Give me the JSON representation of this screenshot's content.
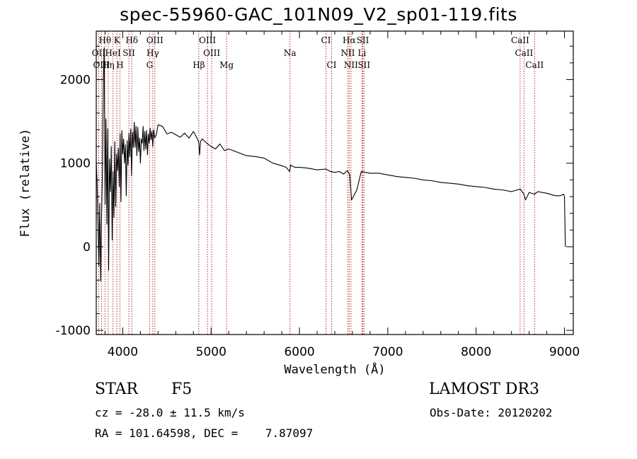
{
  "title": "spec-55960-GAC_101N09_V2_sp01-119.fits",
  "footer": {
    "class_label": "STAR",
    "subclass": "F5",
    "survey": "LAMOST DR3",
    "redshift": "cz = -28.0 ± 11.5 km/s",
    "obs_date": "Obs-Date: 20120202",
    "coords": "RA = 101.64598, DEC =    7.87097"
  },
  "chart_data": {
    "type": "line",
    "title": "spec-55960-GAC_101N09_V2_sp01-119.fits",
    "xlabel": "Wavelength (Å)",
    "ylabel": "Flux (relative)",
    "xlim": [
      3700,
      9100
    ],
    "ylim": [
      -1050,
      2580
    ],
    "xticks": [
      4000,
      5000,
      6000,
      7000,
      8000,
      9000
    ],
    "yticks": [
      -1000,
      0,
      1000,
      2000
    ],
    "grid": false,
    "spectrum": {
      "x": [
        3700,
        3710,
        3720,
        3730,
        3740,
        3750,
        3760,
        3770,
        3780,
        3790,
        3800,
        3810,
        3820,
        3830,
        3840,
        3850,
        3860,
        3870,
        3880,
        3890,
        3900,
        3910,
        3920,
        3930,
        3940,
        3950,
        3960,
        3970,
        3980,
        3990,
        4000,
        4010,
        4020,
        4030,
        4040,
        4050,
        4060,
        4070,
        4080,
        4090,
        4100,
        4110,
        4120,
        4130,
        4140,
        4150,
        4160,
        4170,
        4180,
        4190,
        4200,
        4210,
        4220,
        4230,
        4240,
        4250,
        4260,
        4270,
        4280,
        4290,
        4300,
        4310,
        4320,
        4330,
        4340,
        4350,
        4360,
        4380,
        4400,
        4450,
        4500,
        4550,
        4600,
        4650,
        4700,
        4750,
        4800,
        4850,
        4860,
        4870,
        4880,
        4900,
        4950,
        5000,
        5050,
        5100,
        5150,
        5200,
        5300,
        5400,
        5500,
        5600,
        5700,
        5800,
        5850,
        5890,
        5900,
        5910,
        5950,
        6000,
        6100,
        6200,
        6300,
        6350,
        6400,
        6450,
        6500,
        6540,
        6560,
        6570,
        6590,
        6650,
        6700,
        6800,
        6900,
        7000,
        7100,
        7200,
        7300,
        7400,
        7500,
        7600,
        7700,
        7800,
        7900,
        8000,
        8100,
        8200,
        8300,
        8400,
        8500,
        8540,
        8560,
        8600,
        8660,
        8700,
        8800,
        8900,
        8950,
        8990,
        9000,
        9010
      ],
      "flux": [
        1010,
        760,
        280,
        -230,
        520,
        -410,
        360,
        860,
        2000,
        2380,
        510,
        1530,
        270,
        1410,
        -280,
        1050,
        660,
        1200,
        80,
        900,
        350,
        1260,
        480,
        1110,
        910,
        1180,
        720,
        1350,
        540,
        1390,
        1110,
        1290,
        1000,
        1220,
        610,
        1270,
        980,
        1360,
        1080,
        1410,
        850,
        1370,
        1190,
        1490,
        1190,
        1440,
        1090,
        1430,
        1140,
        1300,
        1000,
        1290,
        1240,
        1440,
        1150,
        1380,
        1170,
        1390,
        1100,
        1350,
        1240,
        1420,
        1280,
        1380,
        1200,
        1400,
        1300,
        1340,
        1460,
        1440,
        1350,
        1370,
        1340,
        1310,
        1360,
        1300,
        1380,
        1280,
        1250,
        1100,
        1260,
        1290,
        1240,
        1200,
        1170,
        1230,
        1150,
        1170,
        1130,
        1090,
        1080,
        1060,
        1000,
        970,
        950,
        900,
        980,
        970,
        950,
        950,
        940,
        920,
        930,
        900,
        890,
        900,
        870,
        910,
        880,
        860,
        560,
        680,
        900,
        880,
        880,
        860,
        840,
        830,
        820,
        800,
        790,
        770,
        760,
        750,
        730,
        720,
        710,
        690,
        680,
        660,
        690,
        630,
        560,
        650,
        630,
        660,
        640,
        610,
        610,
        630,
        600,
        0,
        10
      ]
    },
    "lines_row1": [
      {
        "label": "Hθ",
        "x": 3798
      },
      {
        "label": "K",
        "x": 3934
      },
      {
        "label": "Hδ",
        "x": 4102
      },
      {
        "label": "OIII",
        "x": 4363
      },
      {
        "label": "OIII",
        "x": 4959
      },
      {
        "label": "CI",
        "x": 6300
      },
      {
        "label": "Hα",
        "x": 6563
      },
      {
        "label": "SII",
        "x": 6717
      },
      {
        "label": "CaII",
        "x": 8498
      }
    ],
    "lines_row2": [
      {
        "label": "OII",
        "x": 3727
      },
      {
        "label": "HeI",
        "x": 3889
      },
      {
        "label": "SII",
        "x": 4069
      },
      {
        "label": "Hγ",
        "x": 4340
      },
      {
        "label": "OIII",
        "x": 5007
      },
      {
        "label": "Na",
        "x": 5893
      },
      {
        "label": "NII",
        "x": 6548
      },
      {
        "label": "Li",
        "x": 6708
      },
      {
        "label": "CaII",
        "x": 8542
      }
    ],
    "lines_row3": [
      {
        "label": "OIII",
        "x": 3760
      },
      {
        "label": "Hη",
        "x": 3835
      },
      {
        "label": "H",
        "x": 3968
      },
      {
        "label": "G",
        "x": 4304
      },
      {
        "label": "Hβ",
        "x": 4861
      },
      {
        "label": "Mg",
        "x": 5175
      },
      {
        "label": "CI",
        "x": 6364
      },
      {
        "label": "NII",
        "x": 6583
      },
      {
        "label": "SII",
        "x": 6731
      },
      {
        "label": "CaII",
        "x": 8662
      }
    ]
  }
}
